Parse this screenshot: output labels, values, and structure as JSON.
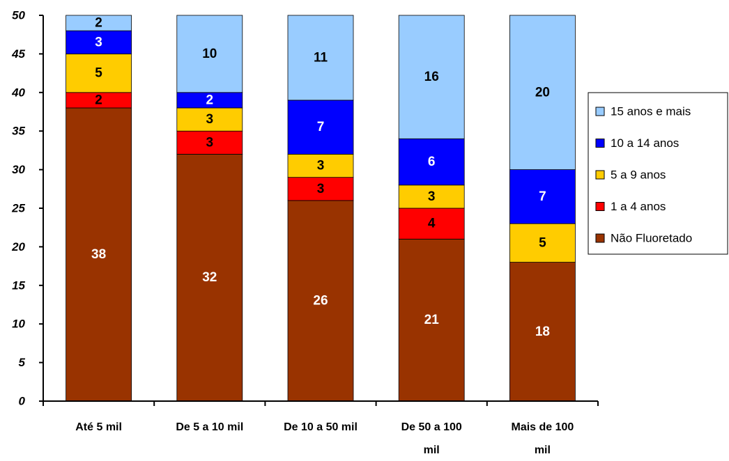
{
  "chart_data": {
    "type": "bar",
    "stacked": true,
    "categories": [
      [
        "Até 5 mil"
      ],
      [
        "De 5 a 10 mil"
      ],
      [
        "De 10 a 50 mil"
      ],
      [
        "De 50 a 100",
        "mil"
      ],
      [
        "Mais de 100",
        "mil"
      ]
    ],
    "series": [
      {
        "name": "Não Fluoretado",
        "color": "#993300",
        "label_color": "#ffffff",
        "values": [
          38,
          32,
          26,
          21,
          18
        ]
      },
      {
        "name": "1 a 4 anos",
        "color": "#ff0000",
        "label_color": "#000000",
        "values": [
          2,
          3,
          3,
          4,
          0
        ]
      },
      {
        "name": "5 a 9 anos",
        "color": "#ffcc00",
        "label_color": "#000000",
        "values": [
          5,
          3,
          3,
          3,
          5
        ]
      },
      {
        "name": "10 a 14 anos",
        "color": "#0000ff",
        "label_color": "#ffffff",
        "values": [
          3,
          2,
          7,
          6,
          7
        ]
      },
      {
        "name": "15 anos e mais",
        "color": "#99ccff",
        "label_color": "#000000",
        "values": [
          2,
          10,
          11,
          16,
          20
        ]
      }
    ],
    "ylim": [
      0,
      50
    ],
    "yticks": [
      0,
      5,
      10,
      15,
      20,
      25,
      30,
      35,
      40,
      45,
      50
    ],
    "legend_position": "right",
    "grid": false
  }
}
